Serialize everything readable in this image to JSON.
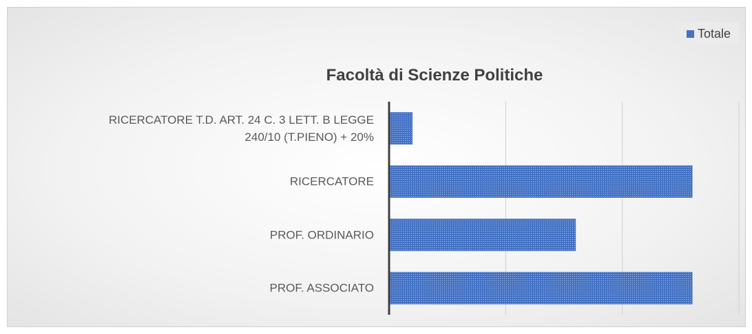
{
  "chart_data": {
    "type": "bar",
    "orientation": "horizontal",
    "title": "Facoltà di Scienze Politiche",
    "categories": [
      "RICERCATORE T.D.  ART. 24 C. 3 LETT. B LEGGE 240/10 (T.PIENO) + 20%",
      "RICERCATORE",
      "PROF. ORDINARIO",
      "PROF. ASSOCIATO"
    ],
    "series": [
      {
        "name": "Totale",
        "color": "#4472c4",
        "values": [
          1,
          13,
          8,
          13
        ]
      }
    ],
    "xlim": [
      0,
      15
    ],
    "xticks": [
      0,
      5,
      10,
      15
    ],
    "grid": true,
    "legend": "top-right"
  }
}
